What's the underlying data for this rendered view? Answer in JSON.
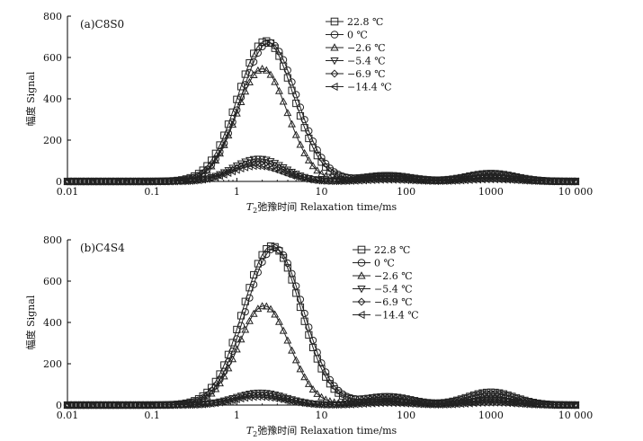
{
  "chart_data": [
    {
      "type": "line",
      "panel_label": "(a)C8S0",
      "xlabel_italic": "T",
      "xlabel_sub": "2",
      "xlabel_rest": "弛豫时间 Relaxation time/ms",
      "ylabel": "幅度 Signal",
      "x_scale": "log",
      "xlim": [
        0.01,
        10000
      ],
      "ylim": [
        0,
        800
      ],
      "x_ticks": [
        0.01,
        0.1,
        1,
        10,
        100,
        1000,
        10000
      ],
      "x_tick_labels": [
        "0.01",
        "0.1",
        "1",
        "10",
        "100",
        "1000",
        "10 000"
      ],
      "y_ticks": [
        0,
        200,
        400,
        600,
        800
      ],
      "y_tick_labels": [
        "0",
        "200",
        "400",
        "600",
        "800"
      ],
      "legend_position": "top-right",
      "series": [
        {
          "name": "22.8 ℃",
          "marker": "square",
          "peaks": [
            [
              2.2,
              680,
              0.33
            ],
            [
              60,
              28,
              0.28
            ],
            [
              1000,
              38,
              0.28
            ]
          ]
        },
        {
          "name": "0 ℃",
          "marker": "circle",
          "peaks": [
            [
              2.4,
              672,
              0.33
            ],
            [
              60,
              26,
              0.28
            ],
            [
              1000,
              36,
              0.28
            ]
          ]
        },
        {
          "name": "−2.6 ℃",
          "marker": "triangle-up",
          "peaks": [
            [
              2.0,
              545,
              0.3
            ],
            [
              60,
              24,
              0.28
            ],
            [
              1000,
              30,
              0.28
            ]
          ]
        },
        {
          "name": "−5.4 ℃",
          "marker": "triangle-down",
          "peaks": [
            [
              1.8,
              110,
              0.3
            ],
            [
              60,
              18,
              0.28
            ],
            [
              1000,
              22,
              0.28
            ]
          ]
        },
        {
          "name": "−6.9 ℃",
          "marker": "diamond",
          "peaks": [
            [
              1.8,
              95,
              0.3
            ],
            [
              60,
              12,
              0.28
            ],
            [
              1000,
              15,
              0.28
            ]
          ]
        },
        {
          "name": "−14.4 ℃",
          "marker": "triangle-left",
          "peaks": [
            [
              1.7,
              75,
              0.3
            ],
            [
              60,
              8,
              0.28
            ],
            [
              1000,
              10,
              0.28
            ]
          ]
        }
      ]
    },
    {
      "type": "line",
      "panel_label": "(b)C4S4",
      "xlabel_italic": "T",
      "xlabel_sub": "2",
      "xlabel_rest": "弛豫时间 Relaxation time/ms",
      "ylabel": "幅度 Signal",
      "x_scale": "log",
      "xlim": [
        0.01,
        10000
      ],
      "ylim": [
        0,
        800
      ],
      "x_ticks": [
        0.01,
        0.1,
        1,
        10,
        100,
        1000,
        10000
      ],
      "x_tick_labels": [
        "0.01",
        "0.1",
        "1",
        "10",
        "100",
        "1000",
        "10 000"
      ],
      "y_ticks": [
        0,
        200,
        400,
        600,
        800
      ],
      "y_tick_labels": [
        "0",
        "200",
        "400",
        "600",
        "800"
      ],
      "legend_position": "top-right",
      "series": [
        {
          "name": "22.8 ℃",
          "marker": "square",
          "peaks": [
            [
              2.6,
              770,
              0.34
            ],
            [
              60,
              40,
              0.28
            ],
            [
              1000,
              62,
              0.28
            ]
          ]
        },
        {
          "name": "0 ℃",
          "marker": "circle",
          "peaks": [
            [
              2.8,
              760,
              0.34
            ],
            [
              60,
              38,
              0.28
            ],
            [
              1000,
              55,
              0.28
            ]
          ]
        },
        {
          "name": "−2.6 ℃",
          "marker": "triangle-up",
          "peaks": [
            [
              2.1,
              480,
              0.3
            ],
            [
              60,
              30,
              0.28
            ],
            [
              1000,
              40,
              0.28
            ]
          ]
        },
        {
          "name": "−5.4 ℃",
          "marker": "triangle-down",
          "peaks": [
            [
              1.9,
              60,
              0.3
            ],
            [
              60,
              20,
              0.28
            ],
            [
              1000,
              25,
              0.28
            ]
          ]
        },
        {
          "name": "−6.9 ℃",
          "marker": "diamond",
          "peaks": [
            [
              1.9,
              50,
              0.3
            ],
            [
              60,
              15,
              0.28
            ],
            [
              1000,
              18,
              0.28
            ]
          ]
        },
        {
          "name": "−14.4 ℃",
          "marker": "triangle-left",
          "peaks": [
            [
              1.8,
              40,
              0.3
            ],
            [
              60,
              10,
              0.28
            ],
            [
              1000,
              12,
              0.28
            ]
          ]
        }
      ]
    }
  ]
}
